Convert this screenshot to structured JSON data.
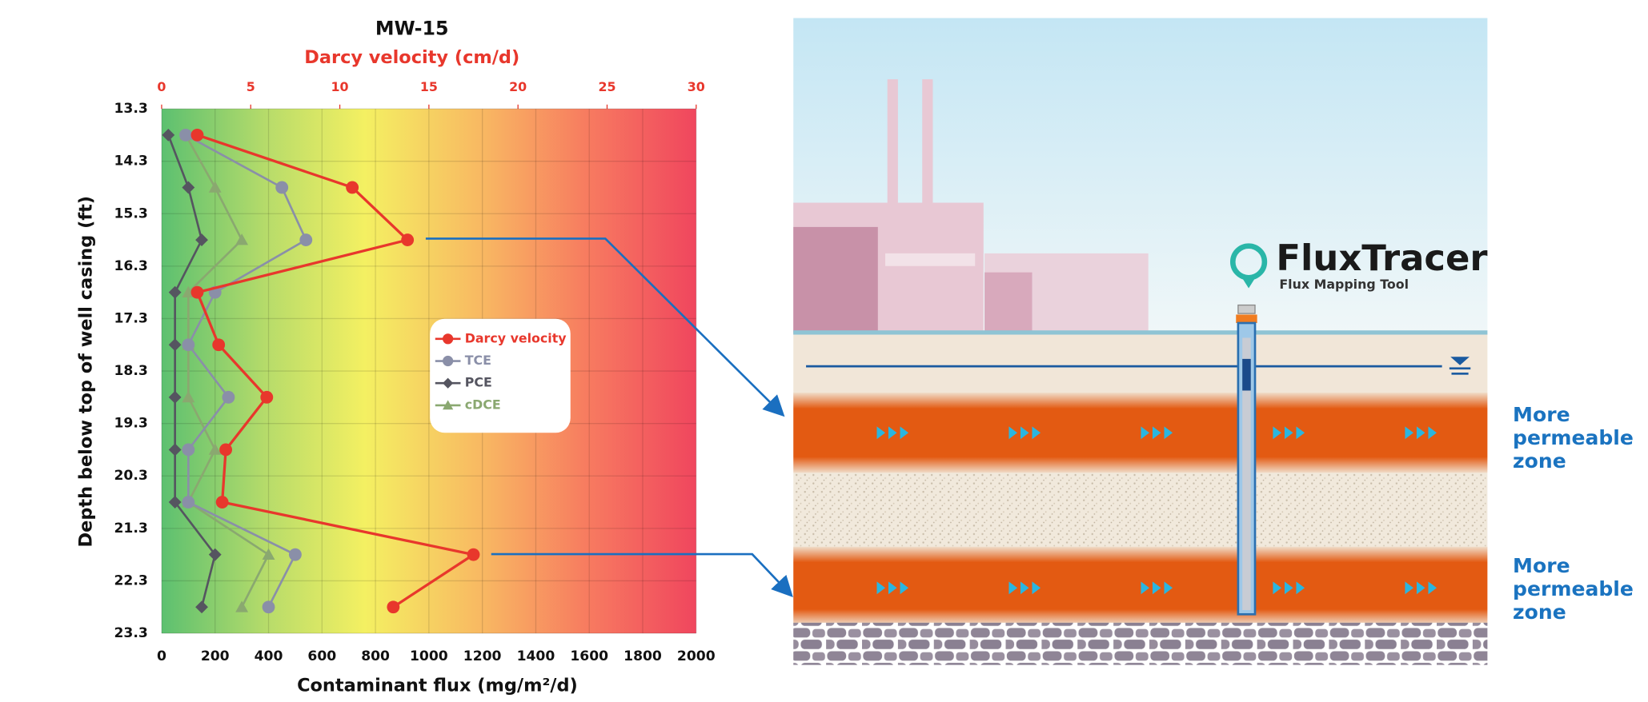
{
  "chart_data": {
    "type": "line",
    "title": "MW-15",
    "x2_label": "Darcy velocity (cm/d)",
    "x_label": "Contaminant flux (mg/m²/d)",
    "y_label": "Depth below top of well casing (ft)",
    "y": [
      13.8,
      14.8,
      15.8,
      16.8,
      17.8,
      18.8,
      19.8,
      20.8,
      21.8,
      22.8
    ],
    "series": [
      {
        "name": "Darcy velocity",
        "color": "#e8372c",
        "marker": "circle",
        "axis": "x2",
        "values": [
          2,
          10.7,
          13.8,
          2,
          3.2,
          5.9,
          3.6,
          3.4,
          17.5,
          13
        ]
      },
      {
        "name": "TCE",
        "color": "#8a8fa8",
        "marker": "circle",
        "values": [
          90,
          450,
          540,
          200,
          100,
          250,
          100,
          100,
          500,
          400
        ]
      },
      {
        "name": "PCE",
        "color": "#555560",
        "marker": "diamond",
        "values": [
          25,
          100,
          150,
          50,
          50,
          50,
          50,
          50,
          200,
          150
        ]
      },
      {
        "name": "cDCE",
        "color": "#8aa870",
        "marker": "triangle",
        "values": [
          90,
          200,
          300,
          100,
          100,
          100,
          200,
          100,
          400,
          300
        ]
      }
    ],
    "xlim": [
      0,
      2000
    ],
    "xticks": [
      0,
      200,
      400,
      600,
      800,
      1000,
      1200,
      1400,
      1600,
      1800,
      2000
    ],
    "x2lim": [
      0,
      30
    ],
    "x2ticks": [
      0,
      5,
      10,
      15,
      20,
      25,
      30
    ],
    "ylim": [
      13.3,
      23.3
    ],
    "yticks": [
      13.3,
      14.3,
      15.3,
      16.3,
      17.3,
      18.3,
      19.3,
      20.3,
      21.3,
      22.3,
      23.3
    ],
    "y_inverted": true,
    "grid": true
  },
  "diagram": {
    "logo_name": "FluxTracer",
    "logo_tagline": "Flux Mapping Tool",
    "zone_labels": [
      [
        "More",
        "permeable",
        "zone"
      ],
      [
        "More",
        "permeable",
        "zone"
      ]
    ]
  }
}
